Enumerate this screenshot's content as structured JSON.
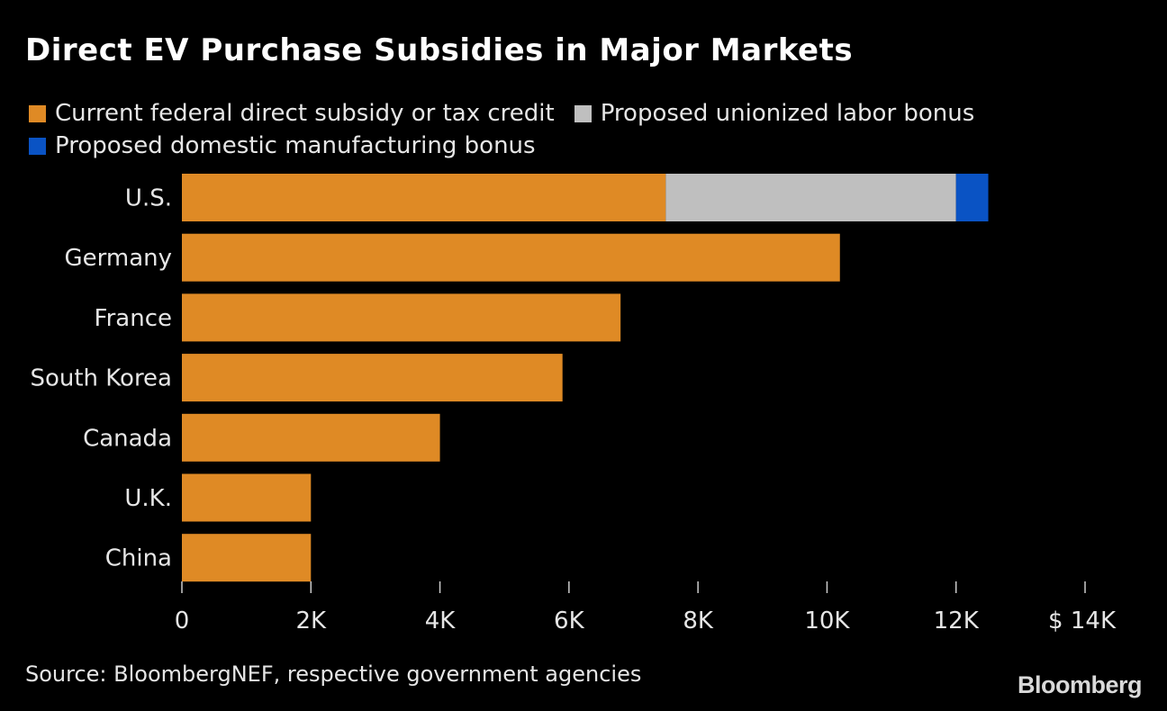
{
  "chart_data": {
    "type": "bar",
    "orientation": "horizontal",
    "stacked": true,
    "title": "Direct EV Purchase Subsidies in Major Markets",
    "categories": [
      "U.S.",
      "Germany",
      "France",
      "South Korea",
      "Canada",
      "U.K.",
      "China"
    ],
    "series": [
      {
        "name": "Current federal direct subsidy or tax credit",
        "color": "#df8a25",
        "values": [
          7500,
          10200,
          6800,
          5900,
          4000,
          2000,
          2000
        ]
      },
      {
        "name": "Proposed unionized labor bonus",
        "color": "#bfbfbf",
        "values": [
          4500,
          0,
          0,
          0,
          0,
          0,
          0
        ]
      },
      {
        "name": "Proposed domestic manufacturing bonus",
        "color": "#0a53c4",
        "values": [
          500,
          0,
          0,
          0,
          0,
          0,
          0
        ]
      }
    ],
    "xlim": [
      0,
      14000
    ],
    "xticks": [
      0,
      2000,
      4000,
      6000,
      8000,
      10000,
      12000,
      14000
    ],
    "xtick_labels": [
      "0",
      "2K",
      "4K",
      "6K",
      "8K",
      "10K",
      "12K",
      "$ 14K"
    ],
    "grid": false,
    "legend_position": "top"
  },
  "source": "Source: BloombergNEF, respective government agencies",
  "brand": "Bloomberg",
  "colors": {
    "background": "#000000",
    "text": "#ffffff"
  }
}
